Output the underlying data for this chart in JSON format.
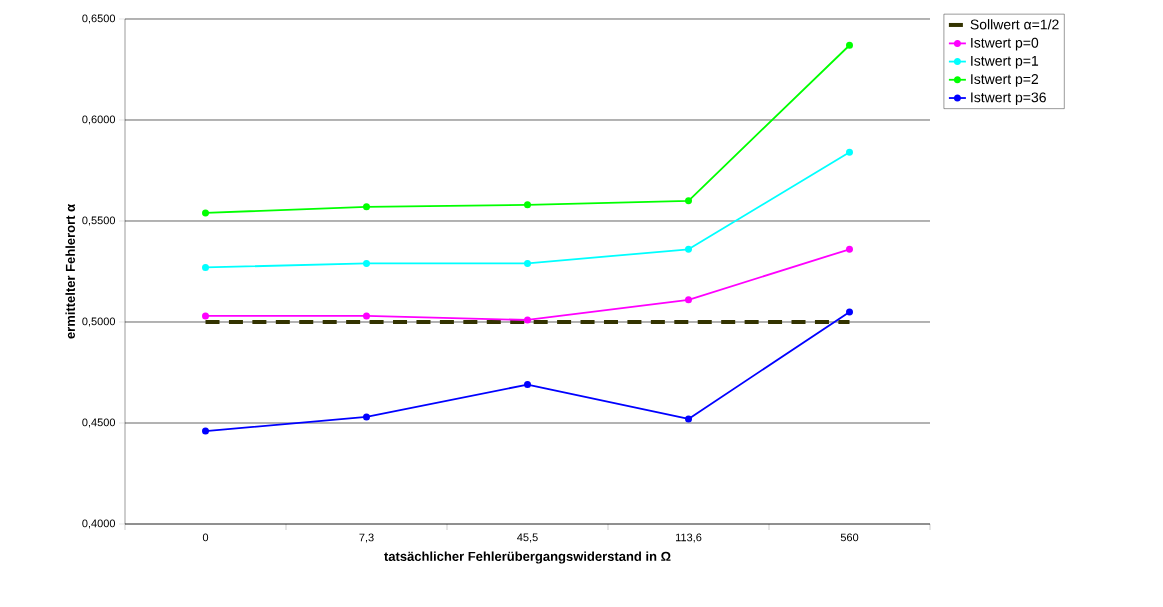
{
  "chart_data": {
    "type": "line",
    "xlabel": "tatsächlicher Fehlerübergangswiderstand in Ω",
    "ylabel": "ermittelter Fehlerort α",
    "categories": [
      "0",
      "7,3",
      "45,5",
      "113,6",
      "560"
    ],
    "series": [
      {
        "name": "Sollwert α=1/2",
        "color": "#333300",
        "values": [
          0.5,
          0.5,
          0.5,
          0.5,
          0.5
        ],
        "line_style": "dashed",
        "marker": "none"
      },
      {
        "name": "Istwert   p=0",
        "color": "#ff00ff",
        "values": [
          0.503,
          0.503,
          0.501,
          0.511,
          0.536
        ]
      },
      {
        "name": "Istwert   p=1",
        "color": "#00ffff",
        "values": [
          0.527,
          0.529,
          0.529,
          0.536,
          0.584
        ]
      },
      {
        "name": "Istwert   p=2",
        "color": "#00ff00",
        "values": [
          0.554,
          0.557,
          0.558,
          0.56,
          0.637
        ]
      },
      {
        "name": "Istwert   p=36",
        "color": "#0000ff",
        "values": [
          0.446,
          0.453,
          0.469,
          0.452,
          0.505
        ]
      }
    ],
    "ylim": [
      0.4,
      0.65
    ],
    "yticks": [
      {
        "value": 0.4,
        "label": "0,4000"
      },
      {
        "value": 0.45,
        "label": "0,4500"
      },
      {
        "value": 0.5,
        "label": "0,5000"
      },
      {
        "value": 0.55,
        "label": "0,5500"
      },
      {
        "value": 0.6,
        "label": "0,6000"
      },
      {
        "value": 0.65,
        "label": "0,6500"
      }
    ],
    "grid": "y",
    "legend": "right",
    "marker": "circle",
    "line_style": "solid"
  }
}
